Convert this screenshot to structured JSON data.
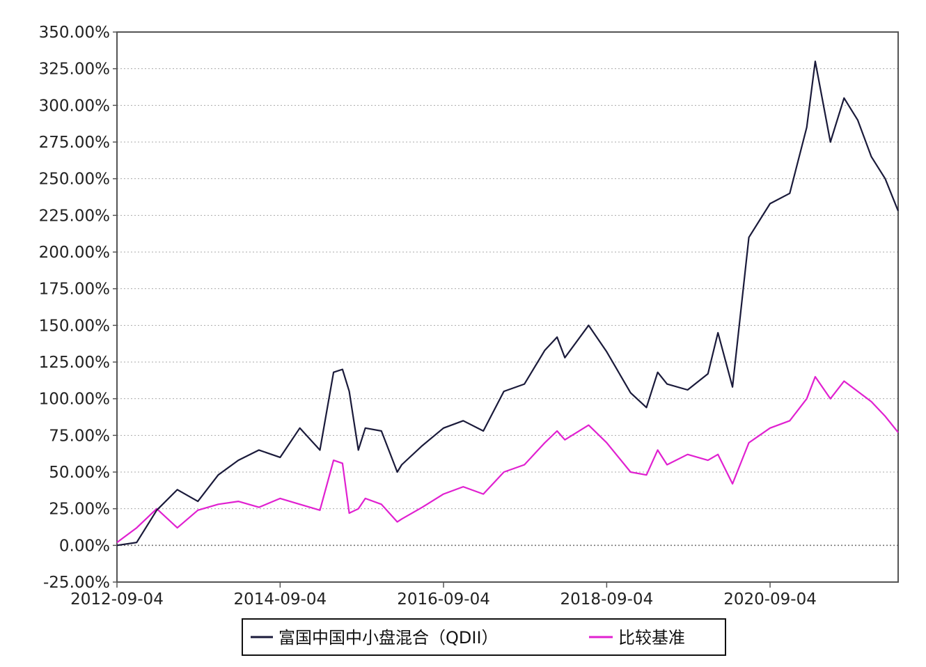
{
  "chart_data": {
    "type": "line",
    "title": "",
    "xlabel": "",
    "ylabel": "",
    "x_ticks": [
      "2012-09-04",
      "2014-09-04",
      "2016-09-04",
      "2018-09-04",
      "2020-09-04"
    ],
    "y_ticks": [
      "350.00%",
      "325.00%",
      "300.00%",
      "275.00%",
      "250.00%",
      "225.00%",
      "200.00%",
      "175.00%",
      "150.00%",
      "125.00%",
      "100.00%",
      "75.00%",
      "50.00%",
      "25.00%",
      "0.00%",
      "-25.00%"
    ],
    "xlim": [
      "2012-09-04",
      "2022-03-31"
    ],
    "ylim": [
      -25,
      350
    ],
    "grid": "horizontal dotted",
    "legend_position": "bottom",
    "x": [
      "2012-09-04",
      "2012-12-01",
      "2013-03-01",
      "2013-06-01",
      "2013-09-01",
      "2013-12-01",
      "2014-03-01",
      "2014-06-01",
      "2014-09-04",
      "2014-12-01",
      "2015-03-01",
      "2015-05-01",
      "2015-06-10",
      "2015-07-10",
      "2015-08-20",
      "2015-09-20",
      "2015-12-01",
      "2016-02-10",
      "2016-03-01",
      "2016-06-01",
      "2016-09-04",
      "2016-12-01",
      "2017-03-01",
      "2017-06-01",
      "2017-09-01",
      "2017-12-01",
      "2018-01-25",
      "2018-03-01",
      "2018-06-15",
      "2018-09-04",
      "2018-12-20",
      "2019-03-01",
      "2019-04-20",
      "2019-06-01",
      "2019-09-01",
      "2019-12-01",
      "2020-01-15",
      "2020-03-20",
      "2020-06-01",
      "2020-09-04",
      "2020-12-01",
      "2021-02-15",
      "2021-03-25",
      "2021-06-01",
      "2021-08-01",
      "2021-10-01",
      "2021-12-01",
      "2022-02-01",
      "2022-03-31"
    ],
    "series": [
      {
        "name": "富国中国中小盘混合（QDII）",
        "color": "#1a1a3a",
        "values": [
          0,
          2,
          24,
          38,
          30,
          48,
          58,
          65,
          60,
          80,
          65,
          118,
          120,
          105,
          65,
          80,
          78,
          50,
          55,
          68,
          80,
          85,
          78,
          105,
          110,
          133,
          142,
          128,
          150,
          132,
          104,
          94,
          118,
          110,
          106,
          117,
          145,
          108,
          210,
          233,
          240,
          285,
          330,
          275,
          305,
          290,
          265,
          250,
          228
        ]
      },
      {
        "name": "比较基准",
        "color": "#e020d0",
        "values": [
          2,
          12,
          25,
          12,
          24,
          28,
          30,
          26,
          32,
          28,
          24,
          58,
          56,
          22,
          25,
          32,
          28,
          16,
          18,
          26,
          35,
          40,
          35,
          50,
          55,
          70,
          78,
          72,
          82,
          70,
          50,
          48,
          65,
          55,
          62,
          58,
          62,
          42,
          70,
          80,
          85,
          100,
          115,
          100,
          112,
          105,
          98,
          88,
          77
        ]
      }
    ]
  }
}
